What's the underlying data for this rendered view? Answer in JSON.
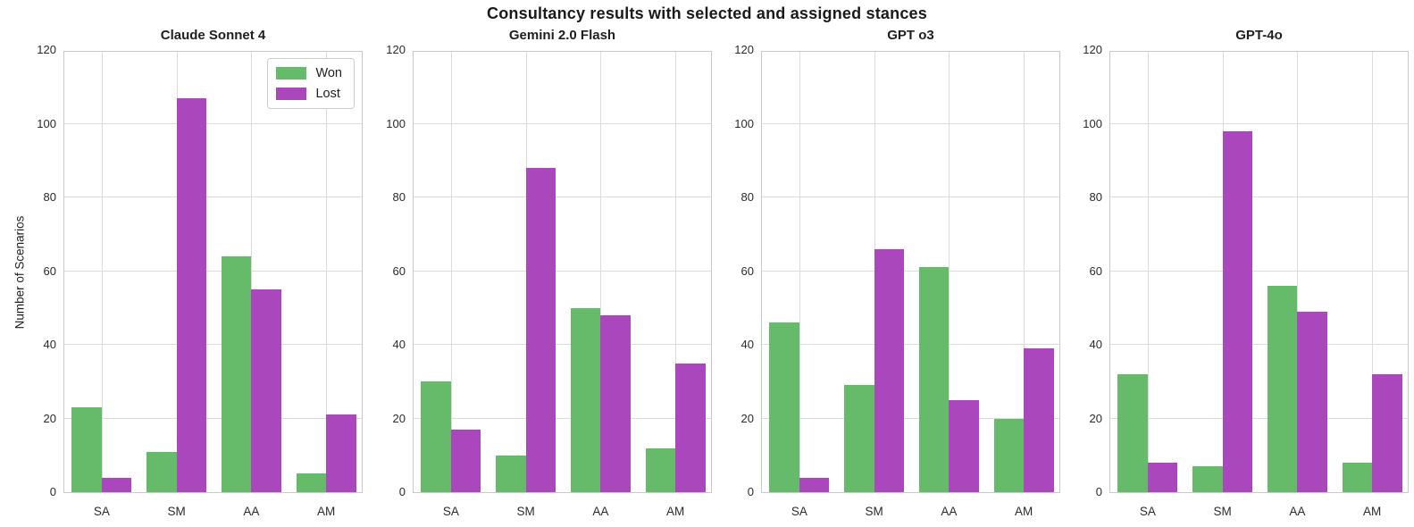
{
  "figure": {
    "suptitle": "Consultancy results with selected and assigned stances",
    "ylabel": "Number of Scenarios"
  },
  "legend": {
    "position": "upper right of first subplot",
    "items": [
      {
        "label": "Won",
        "color": "#66bb6a"
      },
      {
        "label": "Lost",
        "color": "#ab47bc"
      }
    ]
  },
  "colors": {
    "won": "#66bb6a",
    "lost": "#ab47bc",
    "grid": "#dcdcdc",
    "spine": "#c9c9c9",
    "text": "#1f1f1f"
  },
  "axis": {
    "ylim": [
      0,
      120
    ],
    "yticks": [
      0,
      20,
      40,
      60,
      80,
      100,
      120
    ],
    "categories": [
      "SA",
      "SM",
      "AA",
      "AM"
    ],
    "grid": "both"
  },
  "chart_data": [
    {
      "type": "bar",
      "title": "Claude Sonnet 4",
      "categories": [
        "SA",
        "SM",
        "AA",
        "AM"
      ],
      "series": [
        {
          "name": "Won",
          "color": "#66bb6a",
          "values": [
            23,
            11,
            64,
            5
          ]
        },
        {
          "name": "Lost",
          "color": "#ab47bc",
          "values": [
            4,
            107,
            55,
            21
          ]
        }
      ],
      "ylabel": "Number of Scenarios",
      "ylim": [
        0,
        120
      ],
      "legend_position": "upper right"
    },
    {
      "type": "bar",
      "title": "Gemini 2.0 Flash",
      "categories": [
        "SA",
        "SM",
        "AA",
        "AM"
      ],
      "series": [
        {
          "name": "Won",
          "color": "#66bb6a",
          "values": [
            30,
            10,
            50,
            12
          ]
        },
        {
          "name": "Lost",
          "color": "#ab47bc",
          "values": [
            17,
            88,
            48,
            35
          ]
        }
      ],
      "ylim": [
        0,
        120
      ]
    },
    {
      "type": "bar",
      "title": "GPT o3",
      "categories": [
        "SA",
        "SM",
        "AA",
        "AM"
      ],
      "series": [
        {
          "name": "Won",
          "color": "#66bb6a",
          "values": [
            46,
            29,
            61,
            20
          ]
        },
        {
          "name": "Lost",
          "color": "#ab47bc",
          "values": [
            4,
            66,
            25,
            39
          ]
        }
      ],
      "ylim": [
        0,
        120
      ]
    },
    {
      "type": "bar",
      "title": "GPT-4o",
      "categories": [
        "SA",
        "SM",
        "AA",
        "AM"
      ],
      "series": [
        {
          "name": "Won",
          "color": "#66bb6a",
          "values": [
            32,
            7,
            56,
            8
          ]
        },
        {
          "name": "Lost",
          "color": "#ab47bc",
          "values": [
            8,
            98,
            49,
            32
          ]
        }
      ],
      "ylim": [
        0,
        120
      ]
    }
  ]
}
